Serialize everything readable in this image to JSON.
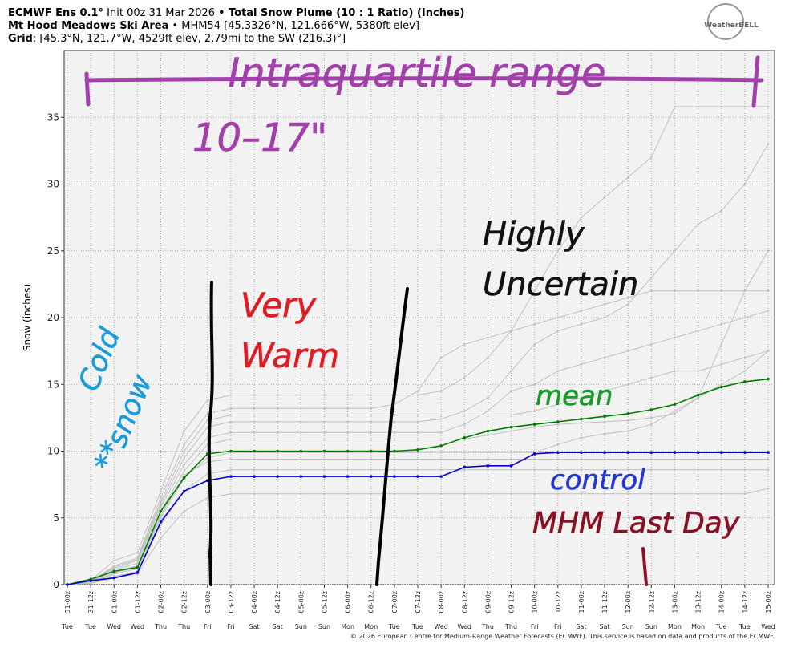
{
  "header": {
    "model": "ECMWF Ens 0.1°",
    "init": "Init 00z 31 Mar 2026",
    "product": "• Total Snow Plume (10 : 1 Ratio) (Inches)",
    "location": "Mt Hood Meadows Ski Area",
    "station": "• MHM54 [45.3326°N, 121.666°W, 5380ft elev]",
    "grid_label": "Grid",
    "grid": ": [45.3°N, 121.7°W, 4529ft elev, 2.79mi to the SW (216.3)°]",
    "logo": "WeatherBELL"
  },
  "chart_data": {
    "type": "line",
    "ylabel": "Snow (inches)",
    "categories": [
      "31-00z",
      "31-12z",
      "01-00z",
      "01-12z",
      "02-00z",
      "02-12z",
      "03-00z",
      "03-12z",
      "04-00z",
      "04-12z",
      "05-00z",
      "05-12z",
      "06-00z",
      "06-12z",
      "07-00z",
      "07-12z",
      "08-00z",
      "08-12z",
      "09-00z",
      "09-12z",
      "10-00z",
      "10-12z",
      "11-00z",
      "11-12z",
      "12-00z",
      "12-12z",
      "13-00z",
      "13-12z",
      "14-00z",
      "14-12z",
      "15-00z"
    ],
    "day_labels": [
      "Tue",
      "Tue",
      "Wed",
      "Wed",
      "Thu",
      "Thu",
      "Fri",
      "Fri",
      "Sat",
      "Sat",
      "Sun",
      "Sun",
      "Mon",
      "Mon",
      "Tue",
      "Tue",
      "Wed",
      "Wed",
      "Thu",
      "Thu",
      "Fri",
      "Fri",
      "Sat",
      "Sat",
      "Sun",
      "Sun",
      "Mon",
      "Mon",
      "Tue",
      "Tue",
      "Wed"
    ],
    "ylim": [
      0,
      40
    ],
    "yticks": [
      0,
      5,
      10,
      15,
      20,
      25,
      30,
      35
    ],
    "grid": true,
    "series": [
      {
        "color": "#c0c0c0",
        "values": [
          0,
          0.3,
          1.8,
          2.4,
          7.0,
          11.5,
          13.8,
          14.2,
          14.2,
          14.2,
          14.2,
          14.2,
          14.2,
          14.2,
          14.2,
          14.2,
          14.5,
          15.5,
          17,
          19,
          22,
          25,
          27.5,
          29,
          30.5,
          32,
          35.8,
          35.8,
          35.8,
          35.8,
          35.8
        ]
      },
      {
        "color": "#c0c0c0",
        "values": [
          0,
          0.2,
          1.2,
          1.8,
          6.0,
          9.5,
          11.8,
          12.2,
          12.2,
          12.2,
          12.2,
          12.2,
          12.2,
          12.2,
          12.2,
          12.2,
          12.4,
          13,
          14,
          16,
          18,
          19,
          19.5,
          20,
          21,
          23,
          25,
          27,
          28,
          30,
          33
        ]
      },
      {
        "color": "#c0c0c0",
        "values": [
          0,
          0.2,
          1.0,
          1.4,
          5.5,
          8.5,
          10.5,
          10.9,
          10.9,
          10.9,
          10.9,
          10.9,
          10.9,
          10.9,
          10.9,
          10.9,
          10.9,
          10.9,
          11.2,
          11.5,
          11.8,
          12,
          12.1,
          12.2,
          12.3,
          12.5,
          12.8,
          14,
          18,
          22,
          25
        ]
      },
      {
        "color": "#c0c0c0",
        "values": [
          0,
          0.1,
          0.6,
          1.0,
          4.5,
          7.0,
          8.3,
          8.6,
          8.6,
          8.6,
          8.6,
          8.6,
          8.6,
          8.6,
          8.6,
          8.6,
          8.6,
          8.6,
          8.6,
          8.6,
          8.6,
          8.6,
          8.6,
          8.6,
          8.6,
          8.6,
          8.6,
          8.6,
          8.6,
          8.6,
          8.6
        ]
      },
      {
        "color": "#c0c0c0",
        "values": [
          0,
          0.2,
          1.4,
          2.0,
          6.5,
          10.5,
          12.8,
          13.2,
          13.2,
          13.2,
          13.2,
          13.2,
          13.2,
          13.2,
          13.5,
          14.5,
          17,
          18,
          18.5,
          19,
          19.5,
          20,
          20.5,
          21,
          21.5,
          22,
          22,
          22,
          22,
          22,
          22
        ]
      },
      {
        "color": "#c0c0c0",
        "values": [
          0,
          0.1,
          0.8,
          1.2,
          5.0,
          8.0,
          9.5,
          9.9,
          9.9,
          9.9,
          9.9,
          9.9,
          9.9,
          9.9,
          9.9,
          9.9,
          9.9,
          9.9,
          9.9,
          9.9,
          9.9,
          10.5,
          11,
          11.3,
          11.5,
          12,
          13,
          14,
          15,
          16,
          17.5
        ]
      },
      {
        "color": "#c0c0c0",
        "values": [
          0,
          0.2,
          1.1,
          1.6,
          5.8,
          9.0,
          11.0,
          11.4,
          11.4,
          11.4,
          11.4,
          11.4,
          11.4,
          11.4,
          11.4,
          11.4,
          11.4,
          12,
          13,
          14.5,
          15,
          16,
          16.5,
          17,
          17.5,
          18,
          18.5,
          19,
          19.5,
          20,
          20.5
        ]
      },
      {
        "color": "#c0c0c0",
        "values": [
          0,
          0.1,
          0.5,
          0.8,
          3.5,
          5.5,
          6.5,
          6.8,
          6.8,
          6.8,
          6.8,
          6.8,
          6.8,
          6.8,
          6.8,
          6.8,
          6.8,
          6.8,
          6.8,
          6.8,
          6.8,
          6.8,
          6.8,
          6.8,
          6.8,
          6.8,
          6.8,
          6.8,
          6.8,
          6.8,
          7.2
        ]
      },
      {
        "color": "#c0c0c0",
        "values": [
          0,
          0.2,
          1.3,
          1.9,
          6.2,
          10.0,
          12.3,
          12.7,
          12.7,
          12.7,
          12.7,
          12.7,
          12.7,
          12.7,
          12.7,
          12.7,
          12.7,
          12.7,
          12.7,
          12.7,
          13,
          13.5,
          14,
          14.5,
          15,
          15.5,
          16,
          16,
          16.5,
          17,
          17.5
        ]
      },
      {
        "color": "#c0c0c0",
        "values": [
          0,
          0.1,
          0.9,
          1.3,
          5.2,
          8.2,
          9.2,
          9.4,
          9.4,
          9.4,
          9.4,
          9.4,
          9.4,
          9.4,
          9.4,
          9.4,
          9.4,
          9.4,
          9.4,
          9.4,
          9.4,
          9.4,
          9.4,
          9.4,
          9.4,
          9.4,
          9.4,
          9.4,
          9.4,
          9.4,
          9.4
        ]
      },
      {
        "color": "#008000",
        "values": [
          0,
          0.4,
          1.0,
          1.3,
          5.5,
          8.0,
          9.8,
          10.0,
          10.0,
          10.0,
          10.0,
          10.0,
          10.0,
          10.0,
          10.0,
          10.1,
          10.4,
          11.0,
          11.5,
          11.8,
          12.0,
          12.2,
          12.4,
          12.6,
          12.8,
          13.1,
          13.5,
          14.2,
          14.8,
          15.2,
          15.4
        ]
      },
      {
        "color": "#0000cc",
        "values": [
          0,
          0.3,
          0.5,
          0.9,
          4.7,
          7.0,
          7.8,
          8.1,
          8.1,
          8.1,
          8.1,
          8.1,
          8.1,
          8.1,
          8.1,
          8.1,
          8.1,
          8.8,
          8.9,
          8.9,
          9.8,
          9.9,
          9.9,
          9.9,
          9.9,
          9.9,
          9.9,
          9.9,
          9.9,
          9.9,
          9.9
        ]
      }
    ],
    "annotations": [
      {
        "text": "Intraquartile range",
        "color": "#a040a8"
      },
      {
        "text": "10–17\"",
        "color": "#a040a8"
      },
      {
        "text": "Highly",
        "color": "#111111"
      },
      {
        "text": "Uncertain",
        "color": "#111111"
      },
      {
        "text": "Very",
        "color": "#e01c24"
      },
      {
        "text": "Warm",
        "color": "#e01c24"
      },
      {
        "text": "Cold",
        "color": "#1a9cd8"
      },
      {
        "text": "snow",
        "color": "#1a9cd8"
      },
      {
        "text": "**",
        "color": "#1a9cd8"
      },
      {
        "text": "mean",
        "color": "#1a9a2a"
      },
      {
        "text": "control",
        "color": "#2438d0"
      },
      {
        "text": "MHM Last Day",
        "color": "#8a1024"
      }
    ]
  },
  "footer": "© 2026 European Centre for Medium-Range Weather Forecasts (ECMWF). This service is based on data and products of the ECMWF."
}
